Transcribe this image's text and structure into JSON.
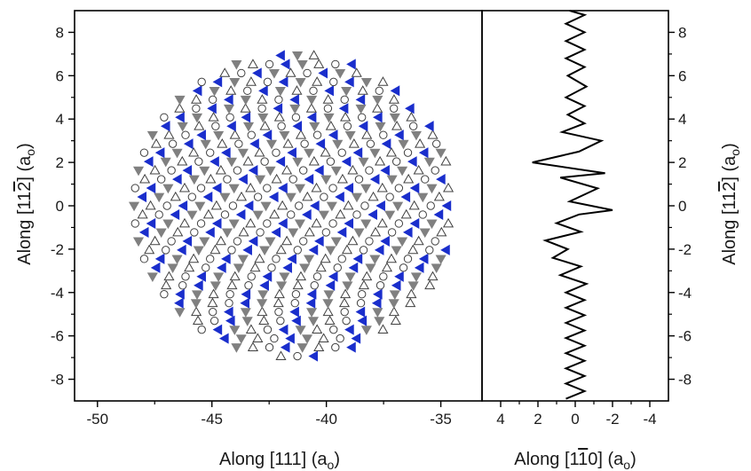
{
  "chart_data": [
    {
      "type": "scatter",
      "panel": "left",
      "xlabel": "Along [111] (aₒ)",
      "ylabel": "Along [11̅2̅] (aₒ)",
      "xlabel_parts": {
        "main": "Along [111] (a",
        "sub": "o",
        "end": ")"
      },
      "ylabel_parts": {
        "main": "Along [11",
        "bar": "2",
        "mid": "] (a",
        "sub": "o",
        "end": ")"
      },
      "xlim": [
        -51,
        -33.2
      ],
      "ylim": [
        -9,
        9
      ],
      "xticks": [
        -50,
        -45,
        -40,
        -35
      ],
      "xtick_labels": [
        "-50",
        "-45",
        "-40",
        "-35"
      ],
      "yticks": [
        -8,
        -6,
        -4,
        -2,
        0,
        2,
        4,
        6,
        8
      ],
      "ytick_labels": [
        "-8",
        "-6",
        "-4",
        "-2",
        "0",
        "2",
        "4",
        "6",
        "8"
      ],
      "grid": false,
      "legend": "none",
      "region": {
        "center_x": -41.4,
        "center_y": 0,
        "radius_x": 7.0,
        "radius_y": 7.0,
        "spacing_y": 0.408
      },
      "series": [
        {
          "marker": "triangle-down",
          "color": "#808080",
          "fill": "#808080"
        },
        {
          "marker": "triangle-up",
          "color": "#404040",
          "fill": "#ffffff"
        },
        {
          "marker": "circle",
          "color": "#404040",
          "fill": "#ffffff"
        },
        {
          "marker": "triangle-left",
          "color": "#1a2ecc",
          "fill": "#1a2ecc"
        }
      ]
    },
    {
      "type": "line",
      "panel": "right",
      "xlabel": "Along [1̅1̅0] (aₒ)",
      "xlabel_parts": {
        "main": "Along [1",
        "bar": "1",
        "mid": "0] (a",
        "sub": "o",
        "end": ")"
      },
      "ylabel": "Along [11̅2̅] (aₒ)",
      "ylabel_parts": {
        "main": "Along [11",
        "bar": "2",
        "mid": "] (a",
        "sub": "o",
        "end": ")"
      },
      "xlim": [
        5,
        -5
      ],
      "ylim": [
        -9,
        9
      ],
      "xticks": [
        4,
        2,
        0,
        -2,
        -4
      ],
      "xtick_labels": [
        "4",
        "2",
        "0",
        "-2",
        "-4"
      ],
      "yticks": [
        -8,
        -6,
        -4,
        -2,
        0,
        2,
        4,
        6,
        8
      ],
      "ytick_labels": [
        "-8",
        "-6",
        "-4",
        "-2",
        "0",
        "2",
        "4",
        "6",
        "8"
      ],
      "grid": false,
      "legend": "none",
      "color": "#000000",
      "points": [
        [
          0.5,
          -8.9
        ],
        [
          -0.5,
          -8.55
        ],
        [
          0.5,
          -8.2
        ],
        [
          -0.5,
          -7.85
        ],
        [
          0.5,
          -7.5
        ],
        [
          -0.5,
          -7.15
        ],
        [
          0.5,
          -6.8
        ],
        [
          -0.5,
          -6.45
        ],
        [
          0.5,
          -6.1
        ],
        [
          -0.5,
          -5.75
        ],
        [
          0.5,
          -5.4
        ],
        [
          -0.5,
          -5.05
        ],
        [
          0.5,
          -4.7
        ],
        [
          -0.5,
          -4.35
        ],
        [
          0.5,
          -4.0
        ],
        [
          -0.6,
          -3.6
        ],
        [
          0.8,
          -3.2
        ],
        [
          -0.3,
          -2.8
        ],
        [
          1.2,
          -2.4
        ],
        [
          0.4,
          -2.0
        ],
        [
          1.6,
          -1.6
        ],
        [
          -0.3,
          -1.2
        ],
        [
          1.0,
          -0.8
        ],
        [
          -0.2,
          -0.4
        ],
        [
          -2.0,
          -0.2
        ],
        [
          0.3,
          0.2
        ],
        [
          -1.2,
          0.8
        ],
        [
          0.8,
          1.3
        ],
        [
          -1.6,
          1.5
        ],
        [
          2.3,
          2.0
        ],
        [
          -0.2,
          2.5
        ],
        [
          -1.4,
          3.0
        ],
        [
          0.7,
          3.4
        ],
        [
          -0.5,
          3.8
        ],
        [
          0.4,
          4.2
        ],
        [
          -0.5,
          4.6
        ],
        [
          0.5,
          5.0
        ],
        [
          -0.6,
          5.5
        ],
        [
          0.4,
          6.0
        ],
        [
          -0.5,
          6.4
        ],
        [
          0.5,
          6.8
        ],
        [
          -0.5,
          7.2
        ],
        [
          0.5,
          7.6
        ],
        [
          -0.5,
          8.0
        ],
        [
          0.5,
          8.4
        ],
        [
          -0.5,
          8.8
        ],
        [
          0.3,
          9.0
        ]
      ]
    }
  ]
}
